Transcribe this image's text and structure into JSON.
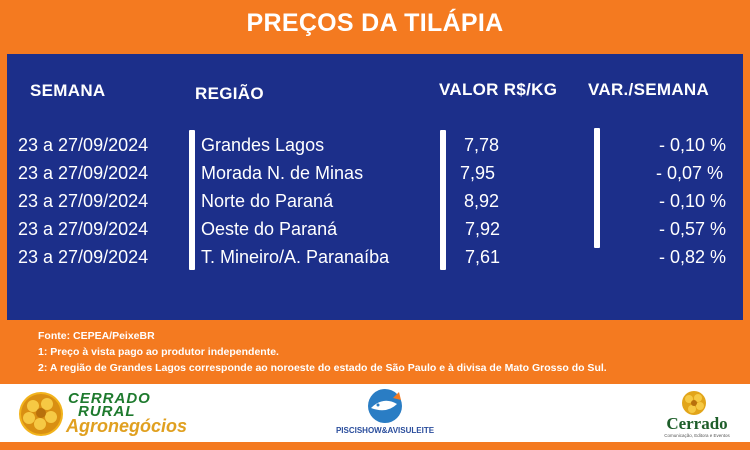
{
  "header": {
    "title": "PREÇOS DA TILÁPIA"
  },
  "table": {
    "columns": [
      "SEMANA",
      "REGIÃO",
      "VALOR R$/KG",
      "VAR./SEMANA"
    ],
    "rows": [
      {
        "semana": "23 a 27/09/2024",
        "regiao": "Grandes Lagos",
        "valor": "7,78",
        "var": "- 0,10 %"
      },
      {
        "semana": "23 a 27/09/2024",
        "regiao": "Morada N. de Minas",
        "valor": "7,95",
        "var": "- 0,07 %"
      },
      {
        "semana": "23 a 27/09/2024",
        "regiao": "Norte do Paraná",
        "valor": "8,92",
        "var": "- 0,10 %"
      },
      {
        "semana": "23 a 27/09/2024",
        "regiao": "Oeste do Paraná",
        "valor": "7,92",
        "var": "- 0,57 %"
      },
      {
        "semana": "23 a 27/09/2024",
        "regiao": "T. Mineiro/A. Paranaíba",
        "valor": "7,61",
        "var": "- 0,82 %"
      }
    ]
  },
  "notes": [
    "Fonte: CEPEA/PeixeBR",
    "1: Preço à vista pago ao produtor independente.",
    "2: A região de Grandes Lagos corresponde ao noroeste do estado de São Paulo e à divisa de Mato Grosso do Sul."
  ],
  "logos": {
    "cerrado_rural_line1": "CERRADO",
    "cerrado_rural_line2": "RURAL",
    "cerrado_rural_line3": "Agronegócios",
    "piscishow": "PISCISHOW&AVISULEITE",
    "cerrado": "Cerrado",
    "cerrado_sub": "Comunicação, Editora e Eventos"
  },
  "colors": {
    "orange": "#f47a20",
    "navy": "#1c2f8a",
    "white": "#ffffff"
  }
}
